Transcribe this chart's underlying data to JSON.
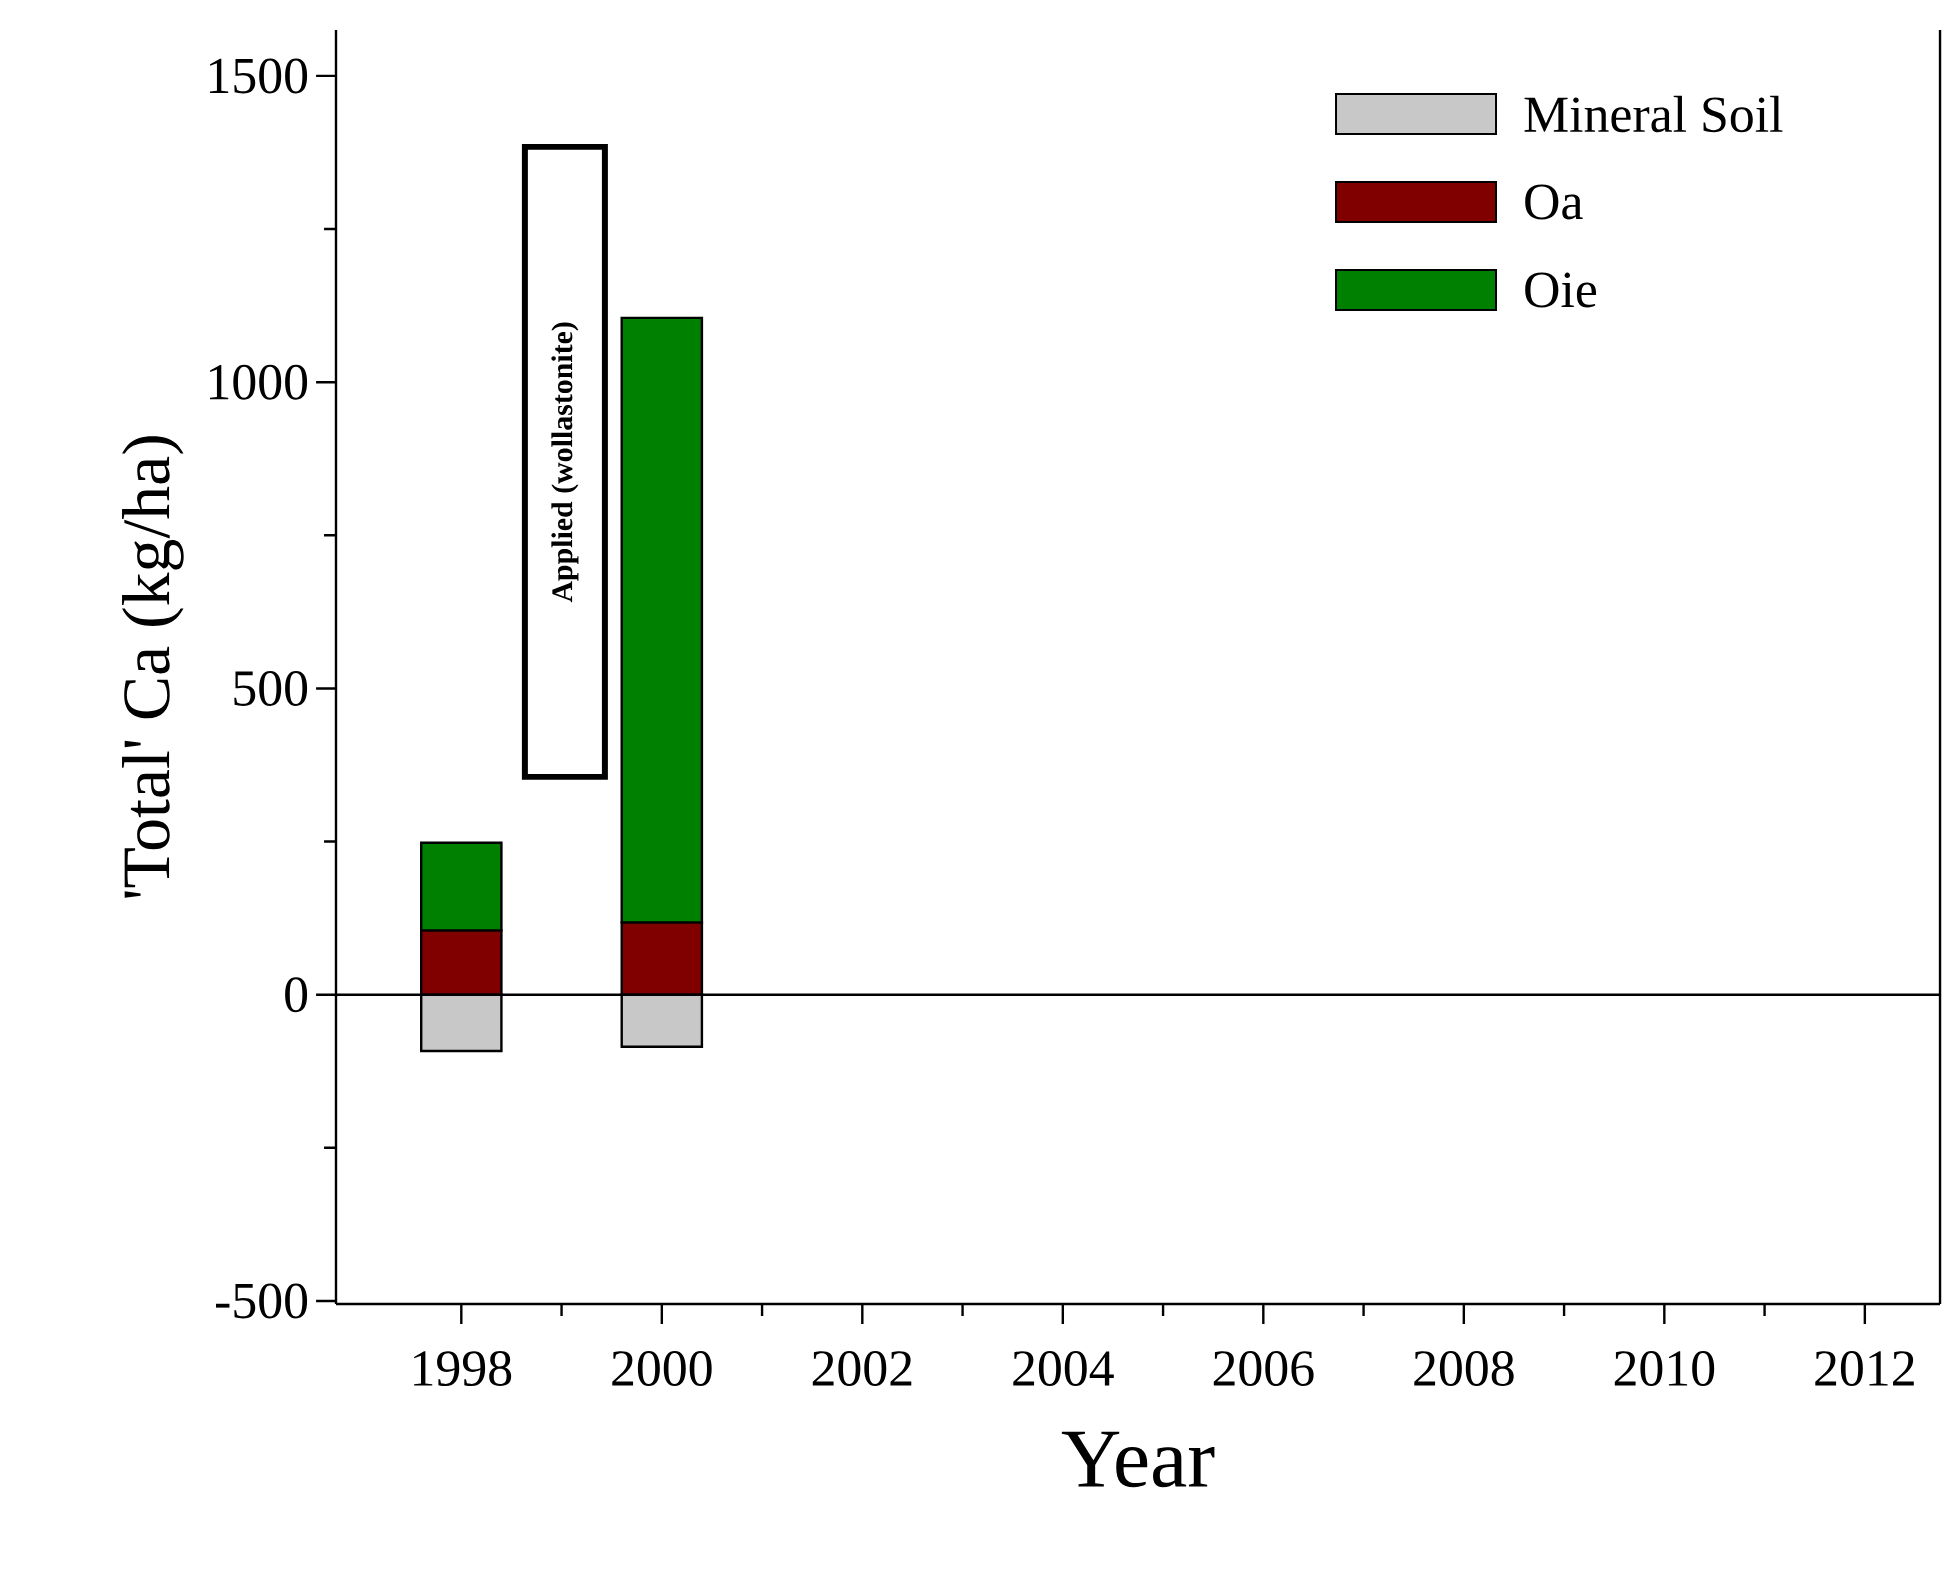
{
  "chart_data": {
    "type": "bar",
    "stacked": true,
    "xlabel": "Year",
    "ylabel": "'Total' Ca (kg/ha)",
    "x": [
      1998,
      2000
    ],
    "series": [
      {
        "name": "Mineral Soil",
        "color": "#c8c8c8",
        "values": [
          -92,
          -85
        ]
      },
      {
        "name": "Oa",
        "color": "#800000",
        "values": [
          105,
          118
        ]
      },
      {
        "name": "Oie",
        "color": "#008000",
        "values": [
          143,
          987
        ]
      }
    ],
    "xlim": [
      1996.75,
      2012.75
    ],
    "xticks": [
      1998,
      2000,
      2002,
      2004,
      2006,
      2008,
      2010,
      2012
    ],
    "ylim": [
      -505,
      1575
    ],
    "yticks": [
      -500,
      0,
      500,
      1000,
      1500
    ],
    "ref_lines": [
      {
        "axis": "y",
        "value": 0
      }
    ],
    "annotations": [
      "Applied (wollastonite)"
    ],
    "legend": "top right"
  }
}
